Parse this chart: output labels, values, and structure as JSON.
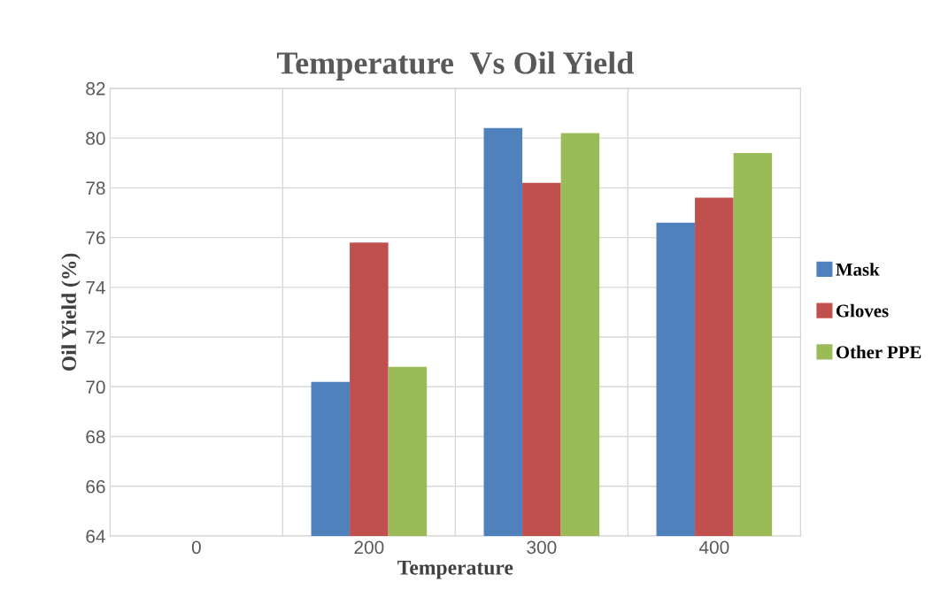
{
  "chart_data": {
    "type": "bar",
    "title": "Temperature  Vs Oil Yield",
    "xlabel": "Temperature",
    "ylabel": "Oil Yield (%)",
    "categories": [
      "0",
      "200",
      "300",
      "400"
    ],
    "series": [
      {
        "name": "Mask",
        "color": "#4f81bd",
        "values": [
          null,
          70.2,
          80.4,
          76.6
        ]
      },
      {
        "name": "Gloves",
        "color": "#c0504d",
        "values": [
          null,
          75.8,
          78.2,
          77.6
        ]
      },
      {
        "name": "Other PPE",
        "color": "#9bbb59",
        "values": [
          null,
          70.8,
          80.2,
          79.4
        ]
      }
    ],
    "ylim": [
      64,
      82
    ],
    "yticks": [
      64,
      66,
      68,
      70,
      72,
      74,
      76,
      78,
      80,
      82
    ],
    "grid": true,
    "legend": "right"
  }
}
